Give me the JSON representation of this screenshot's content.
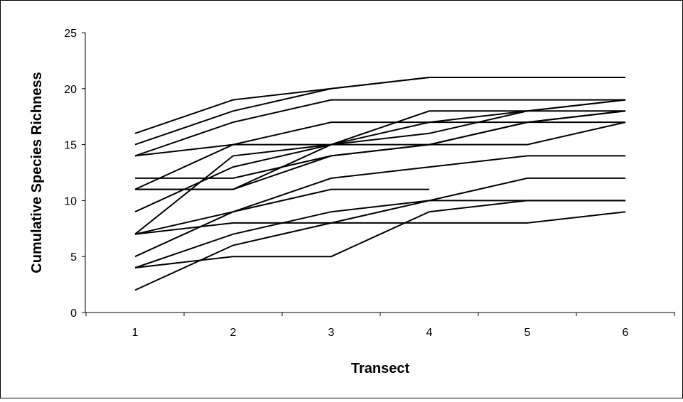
{
  "chart_data": {
    "type": "line",
    "title": "",
    "xlabel": "Transect",
    "ylabel": "Cumulative Species Richness",
    "x": [
      1,
      2,
      3,
      4,
      5,
      6
    ],
    "x_tick_labels": [
      "1",
      "2",
      "3",
      "4",
      "5",
      "6"
    ],
    "ylim": [
      0,
      25
    ],
    "y_ticks": [
      0,
      5,
      10,
      15,
      20,
      25
    ],
    "y_tick_labels": [
      "0",
      "5",
      "10",
      "15",
      "20",
      "25"
    ],
    "grid": false,
    "legend": "none",
    "line_color": "#000000",
    "series": [
      {
        "values": [
          16,
          19,
          20,
          21,
          21,
          21
        ]
      },
      {
        "values": [
          15,
          18,
          20,
          21,
          21,
          21
        ]
      },
      {
        "values": [
          14,
          17,
          19,
          19,
          19,
          19
        ]
      },
      {
        "values": [
          14,
          15,
          15,
          15,
          15,
          17
        ]
      },
      {
        "values": [
          11,
          15,
          17,
          17,
          17,
          17
        ]
      },
      {
        "values": [
          11,
          11,
          15,
          18,
          18,
          19
        ]
      },
      {
        "values": [
          11,
          11,
          14,
          15,
          17,
          18
        ]
      },
      {
        "values": [
          12,
          12,
          14,
          15,
          17,
          18
        ]
      },
      {
        "values": [
          9,
          13,
          15,
          16,
          18,
          18
        ]
      },
      {
        "values": [
          7,
          14,
          15,
          17,
          18,
          19
        ]
      },
      {
        "values": [
          7,
          9,
          12,
          13,
          14,
          14
        ]
      },
      {
        "values": [
          5,
          9,
          11,
          11,
          null,
          null
        ]
      },
      {
        "values": [
          7,
          8,
          8,
          8,
          8,
          9
        ]
      },
      {
        "values": [
          4,
          7,
          9,
          10,
          12,
          12
        ]
      },
      {
        "values": [
          4,
          5,
          5,
          9,
          10,
          10
        ]
      },
      {
        "values": [
          2,
          6,
          8,
          10,
          10,
          10
        ]
      }
    ]
  }
}
